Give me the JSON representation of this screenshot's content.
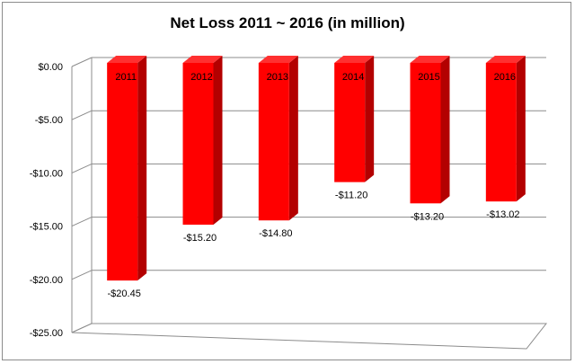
{
  "chart_data": {
    "type": "bar",
    "title": "Net Loss 2011 ~ 2016 (in million)",
    "xlabel": "",
    "ylabel": "",
    "categories": [
      "2011",
      "2012",
      "2013",
      "2014",
      "2015",
      "2016"
    ],
    "values": [
      -20.45,
      -15.2,
      -14.8,
      -11.2,
      -13.2,
      -13.02
    ],
    "data_labels": [
      "-$20.45",
      "-$15.20",
      "-$14.80",
      "-$11.20",
      "-$13.20",
      "-$13.02"
    ],
    "ylim": [
      -25,
      0
    ],
    "yticks": [
      0,
      -5,
      -10,
      -15,
      -20,
      -25
    ],
    "ytick_labels": [
      "$0.00",
      "-$5.00",
      "-$10.00",
      "-$15.00",
      "-$20.00",
      "-$25.00"
    ],
    "grid": true,
    "legend": "none",
    "three_d": true,
    "colors": {
      "bar_front": "#ff0000",
      "bar_side": "#b30000",
      "bar_top": "#ff3030",
      "grid": "#8c8c8c",
      "frame": "#8c8c8c"
    }
  }
}
